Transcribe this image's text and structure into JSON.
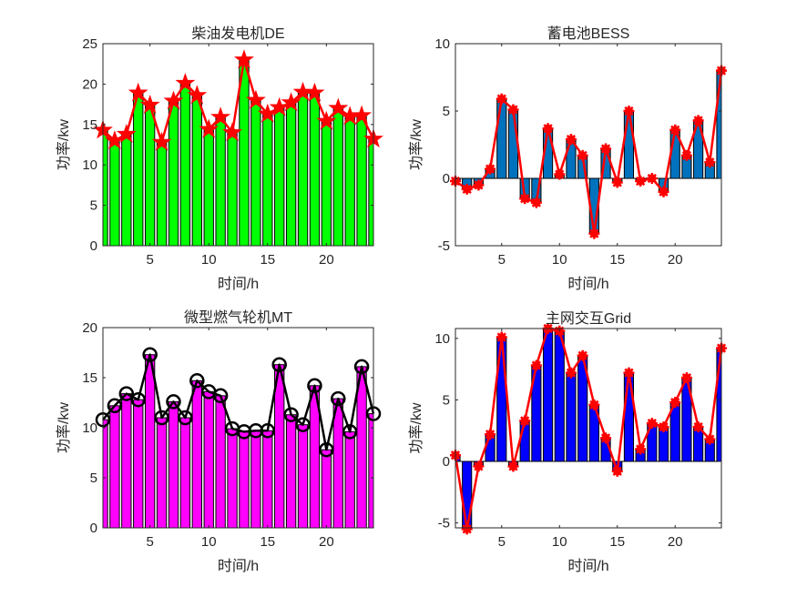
{
  "chart_data": [
    {
      "type": "bar",
      "title": "柴油发电机DE",
      "xlabel": "时间/h",
      "ylabel": "功率/kw",
      "x": [
        1,
        2,
        3,
        4,
        5,
        6,
        7,
        8,
        9,
        10,
        11,
        12,
        13,
        14,
        15,
        16,
        17,
        18,
        19,
        20,
        21,
        22,
        23,
        24
      ],
      "values": [
        14.3,
        13.0,
        13.8,
        18.9,
        17.4,
        12.8,
        17.9,
        20.1,
        18.6,
        14.4,
        15.9,
        14.0,
        23.0,
        18.0,
        16.3,
        17.1,
        17.7,
        19.0,
        18.9,
        15.4,
        17.0,
        16.0,
        16.1,
        13.2
      ],
      "xlim": [
        1,
        24
      ],
      "ylim": [
        0,
        25
      ],
      "xticks": [
        "5",
        "10",
        "15",
        "20"
      ],
      "xtick_values": [
        5,
        10,
        15,
        20
      ],
      "yticks": [
        "0",
        "5",
        "10",
        "15",
        "20",
        "25"
      ],
      "ytick_values": [
        0,
        5,
        10,
        15,
        20,
        25
      ],
      "bar_color": "#00ff00",
      "line_color": "#ff0000",
      "marker": "pentagram"
    },
    {
      "type": "bar",
      "title": "蓄电池BESS",
      "xlabel": "时间/h",
      "ylabel": "功率/kw",
      "x": [
        1,
        2,
        3,
        4,
        5,
        6,
        7,
        8,
        9,
        10,
        11,
        12,
        13,
        14,
        15,
        16,
        17,
        18,
        19,
        20,
        21,
        22,
        23,
        24
      ],
      "values": [
        -0.2,
        -0.8,
        -0.5,
        0.7,
        5.9,
        5.1,
        -1.5,
        -1.8,
        3.7,
        0.3,
        2.9,
        1.7,
        -4.1,
        2.2,
        -0.3,
        5.0,
        -0.2,
        0.0,
        -1.0,
        3.6,
        1.7,
        4.3,
        1.2,
        8.0
      ],
      "xlim": [
        1,
        24
      ],
      "ylim": [
        -5,
        10
      ],
      "xticks": [
        "5",
        "10",
        "15",
        "20"
      ],
      "xtick_values": [
        5,
        10,
        15,
        20
      ],
      "yticks": [
        "-5",
        "0",
        "5",
        "10"
      ],
      "ytick_values": [
        -5,
        0,
        5,
        10
      ],
      "bar_color": "#0072bd",
      "line_color": "#ff0000",
      "marker": "asterisk"
    },
    {
      "type": "bar",
      "title": "微型燃气轮机MT",
      "xlabel": "时间/h",
      "ylabel": "功率/kw",
      "x": [
        1,
        2,
        3,
        4,
        5,
        6,
        7,
        8,
        9,
        10,
        11,
        12,
        13,
        14,
        15,
        16,
        17,
        18,
        19,
        20,
        21,
        22,
        23,
        24
      ],
      "values": [
        10.8,
        12.2,
        13.4,
        12.8,
        17.3,
        11.0,
        12.6,
        11.0,
        14.7,
        13.6,
        13.2,
        9.9,
        9.6,
        9.7,
        9.7,
        16.3,
        11.3,
        10.3,
        14.2,
        7.8,
        12.9,
        9.6,
        16.1,
        11.4
      ],
      "xlim": [
        1,
        24
      ],
      "ylim": [
        0,
        20
      ],
      "xticks": [
        "5",
        "10",
        "15",
        "20"
      ],
      "xtick_values": [
        5,
        10,
        15,
        20
      ],
      "yticks": [
        "0",
        "5",
        "10",
        "15",
        "20"
      ],
      "ytick_values": [
        0,
        5,
        10,
        15,
        20
      ],
      "bar_color": "#ff00ff",
      "line_color": "#000000",
      "marker": "circle"
    },
    {
      "type": "bar",
      "title": "主网交互Grid",
      "xlabel": "时间/h",
      "ylabel": "功率/kw",
      "x": [
        1,
        2,
        3,
        4,
        5,
        6,
        7,
        8,
        9,
        10,
        11,
        12,
        13,
        14,
        15,
        16,
        17,
        18,
        19,
        20,
        21,
        22,
        23,
        24
      ],
      "values": [
        0.5,
        -5.5,
        -0.4,
        2.2,
        10.1,
        -0.4,
        3.3,
        7.8,
        10.8,
        10.6,
        7.2,
        8.6,
        4.6,
        1.9,
        -0.8,
        7.2,
        1.0,
        3.1,
        2.8,
        4.8,
        6.8,
        2.8,
        1.8,
        9.2
      ],
      "xlim": [
        1,
        24
      ],
      "ylim": [
        -5.4,
        10.8
      ],
      "xticks": [
        "5",
        "10",
        "15",
        "20"
      ],
      "xtick_values": [
        5,
        10,
        15,
        20
      ],
      "yticks": [
        "-5",
        "0",
        "5",
        "10"
      ],
      "ytick_values": [
        -5,
        0,
        5,
        10
      ],
      "bar_color": "#0000ff",
      "line_color": "#ff0000",
      "marker": "asterisk"
    }
  ]
}
